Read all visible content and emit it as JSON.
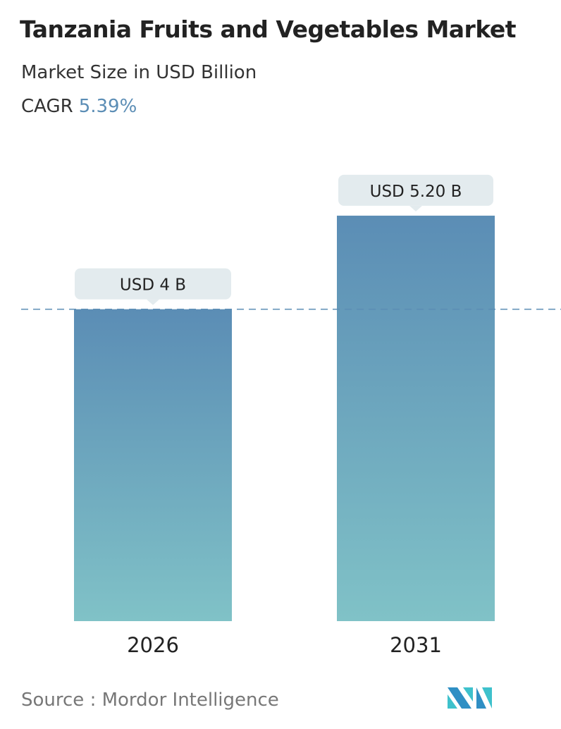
{
  "header": {
    "title": "Tanzania Fruits and Vegetables Market",
    "subtitle": "Market Size in USD Billion",
    "cagr_label": "CAGR",
    "cagr_value": "5.39%"
  },
  "chart_data": {
    "type": "bar",
    "categories": [
      "2026",
      "2031"
    ],
    "values": [
      4,
      5.2
    ],
    "data_labels": [
      "USD 4 B",
      "USD 5.20 B"
    ],
    "reference_line": 4,
    "colors": {
      "bar_top": "#5b8db5",
      "bar_bottom": "#80c2c7",
      "label_bg": "#e3ebee",
      "dash": "#5b8db5"
    }
  },
  "footer": {
    "source": "Source :  Mordor Intelligence",
    "logo_text": "Mordor Intelligence"
  }
}
